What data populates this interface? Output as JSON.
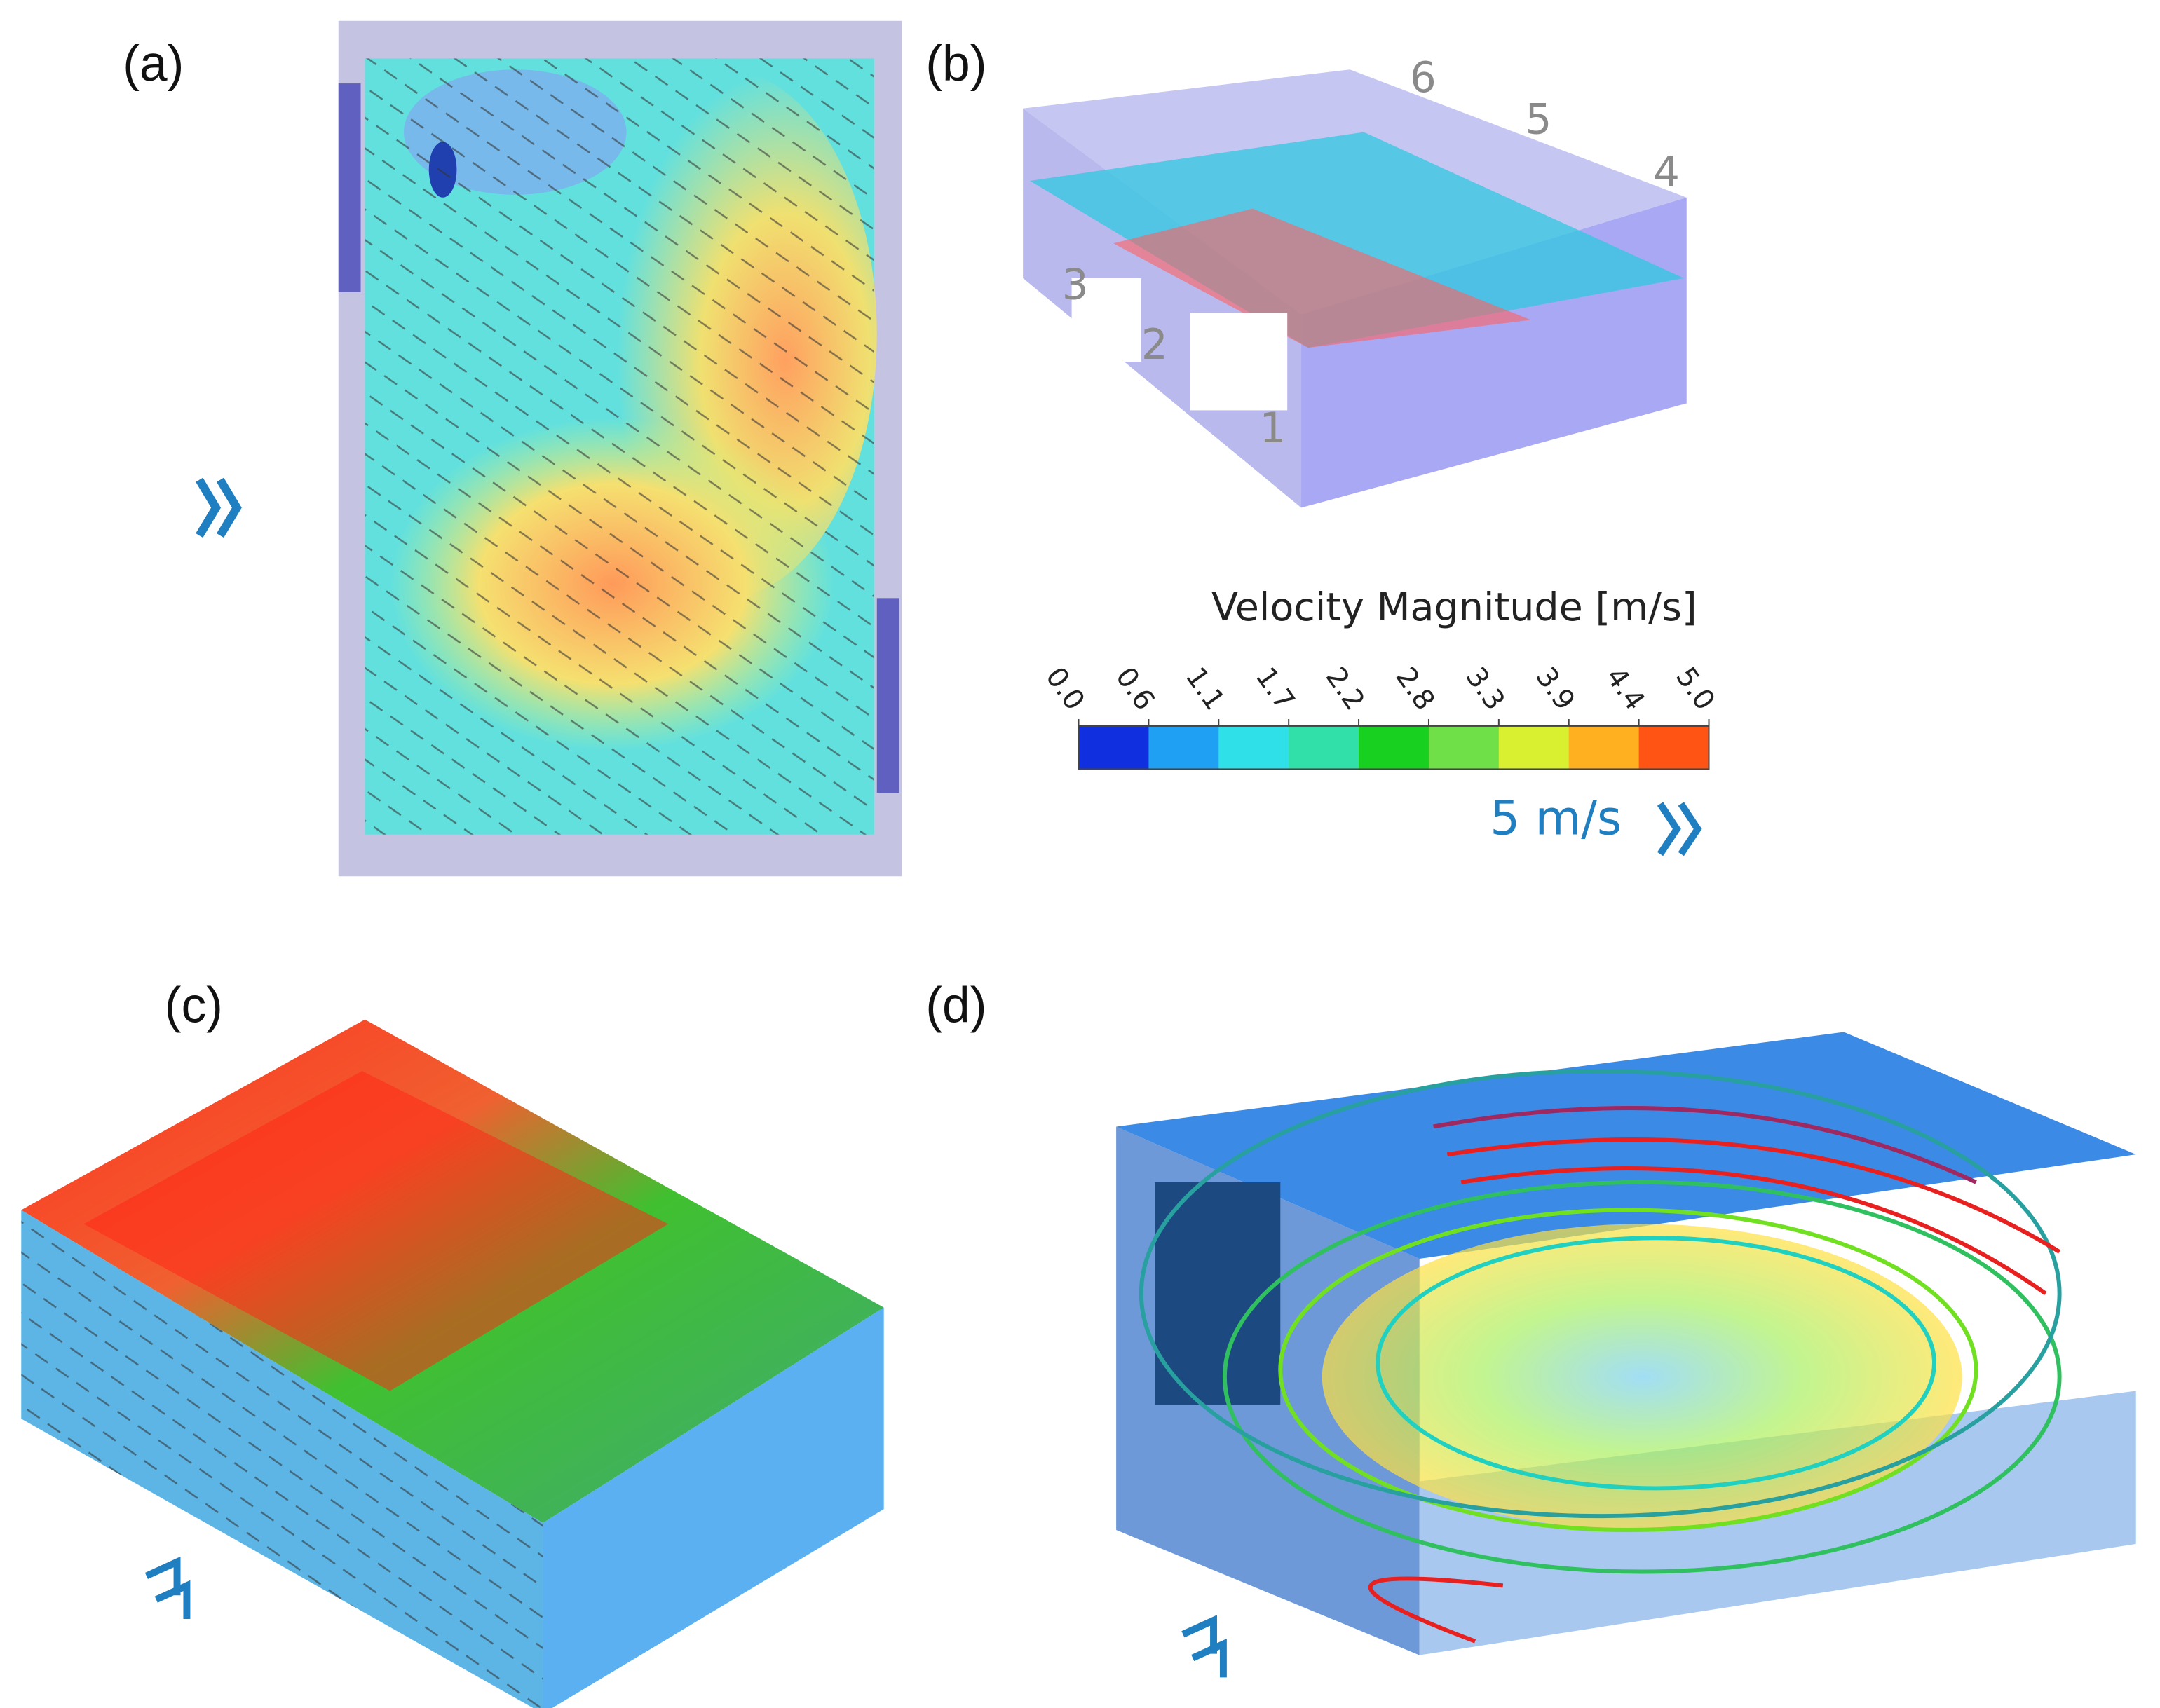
{
  "panels": [
    {
      "label": "(a)"
    },
    {
      "label": "(b)",
      "window_labels": [
        "1",
        "2",
        "3",
        "4",
        "5",
        "6"
      ]
    },
    {
      "label": "(c)"
    },
    {
      "label": "(d)"
    }
  ],
  "legend": {
    "title": "Velocity Magnitude [m/s]",
    "ticks": [
      "0.0",
      "0.6",
      "1.1",
      "1.7",
      "2.2",
      "2.8",
      "3.3",
      "3.9",
      "4.4",
      "5.0"
    ],
    "colors": [
      "#1030e0",
      "#1fa0f2",
      "#30e0e8",
      "#30e0a8",
      "#18d020",
      "#70e048",
      "#d8f030",
      "#ffb020",
      "#ff5414"
    ],
    "reference_vector": "5 m/s"
  }
}
